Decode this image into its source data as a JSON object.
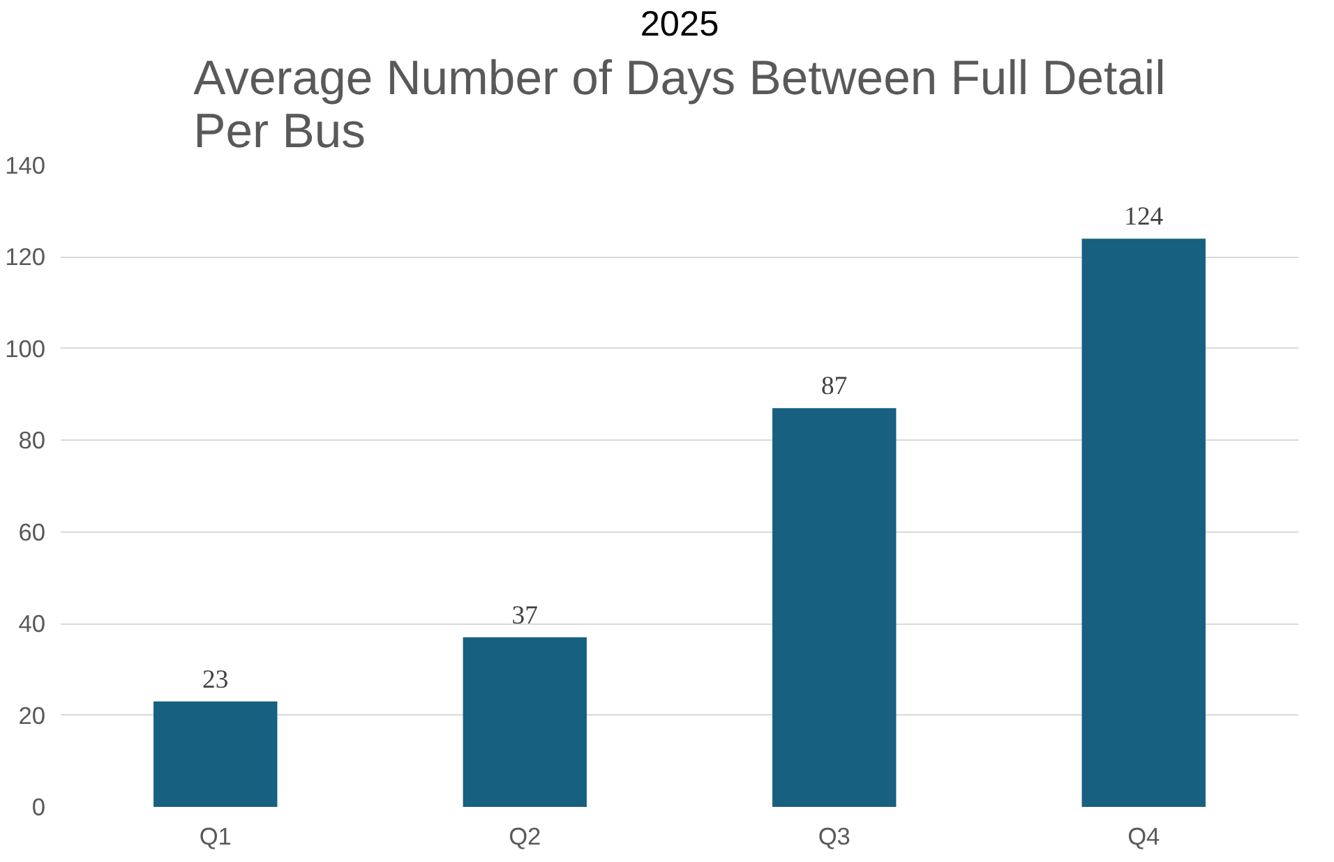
{
  "chart_data": {
    "type": "bar",
    "subtitle": "2025",
    "title": "Average Number of Days Between Full Detail Per Bus",
    "categories": [
      "Q1",
      "Q2",
      "Q3",
      "Q4"
    ],
    "values": [
      23,
      37,
      87,
      124
    ],
    "color": "#17607f",
    "ylim": [
      0,
      140
    ],
    "yticks": [
      0,
      20,
      40,
      60,
      80,
      100,
      120,
      140
    ],
    "grid": "y",
    "data_labels": true
  }
}
